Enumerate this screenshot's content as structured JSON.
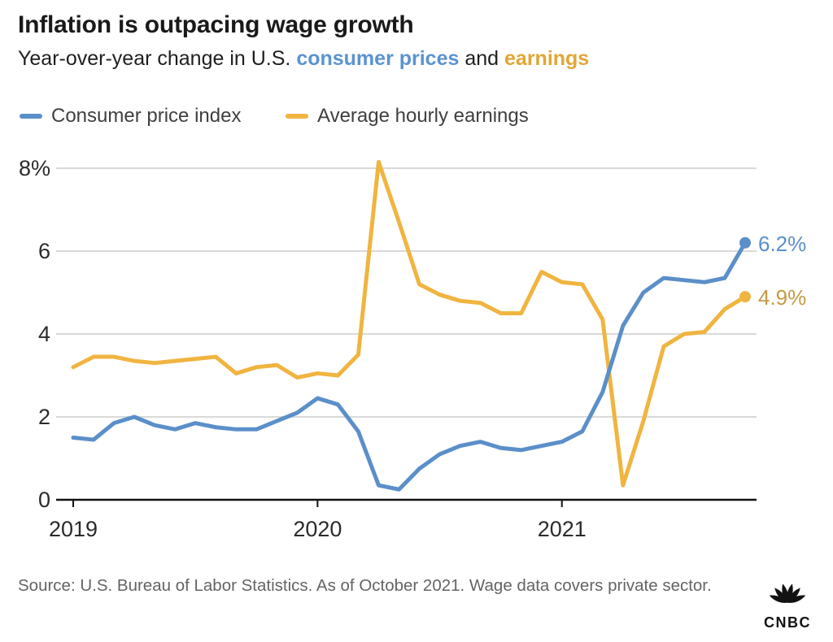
{
  "header": {
    "title": "Inflation is outpacing wage growth",
    "subtitle_prefix": "Year-over-year change in U.S. ",
    "subtitle_cpi": "consumer prices",
    "subtitle_cpi_color": "#5b93d1",
    "subtitle_and": " and ",
    "subtitle_earnings": "earnings",
    "subtitle_earnings_color": "#e2a636"
  },
  "chart_data": {
    "type": "line",
    "x": {
      "start": "2019-01",
      "end": "2021-10",
      "step": "1 month",
      "points": 34
    },
    "xticks": [
      "2019",
      "2020",
      "2021"
    ],
    "xtick_month_index": [
      0,
      12,
      24
    ],
    "yticks": [
      "8%",
      "6",
      "4",
      "2",
      "0"
    ],
    "ytick_values": [
      8,
      6,
      4,
      2,
      0
    ],
    "ylim": [
      0,
      8.3
    ],
    "grid": "horizontal-only",
    "legend_position": "top-left",
    "series": [
      {
        "id": "cpi",
        "name": "Consumer price index",
        "color": "#5b8fc9",
        "end_label": "6.2%",
        "end_label_color": "#5b8fc9",
        "values": [
          1.5,
          1.45,
          1.85,
          2.0,
          1.8,
          1.7,
          1.85,
          1.75,
          1.7,
          1.7,
          1.9,
          2.1,
          2.45,
          2.3,
          1.65,
          0.35,
          0.25,
          0.75,
          1.1,
          1.3,
          1.4,
          1.25,
          1.2,
          1.3,
          1.4,
          1.65,
          2.6,
          4.2,
          5.0,
          5.35,
          5.3,
          5.25,
          5.35,
          6.2
        ]
      },
      {
        "id": "earnings",
        "name": "Average hourly earnings",
        "color": "#f0b440",
        "end_label": "4.9%",
        "end_label_color": "#c39b44",
        "values": [
          3.2,
          3.45,
          3.45,
          3.35,
          3.3,
          3.35,
          3.4,
          3.45,
          3.05,
          3.2,
          3.25,
          2.95,
          3.05,
          3.0,
          3.5,
          8.15,
          6.7,
          5.2,
          4.95,
          4.8,
          4.75,
          4.5,
          4.5,
          5.5,
          5.25,
          5.2,
          4.35,
          0.35,
          1.9,
          3.7,
          4.0,
          4.05,
          4.6,
          4.9
        ]
      }
    ]
  },
  "footer": {
    "source": "Source: U.S. Bureau of Labor Statistics. As of October 2021. Wage data covers private sector.",
    "logo_text": "CNBC"
  }
}
